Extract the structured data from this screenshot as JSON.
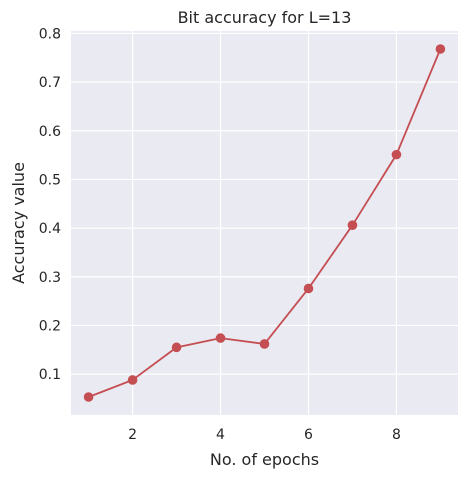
{
  "chart_data": {
    "type": "line",
    "title": "Bit accuracy for L=13",
    "xlabel": "No. of epochs",
    "ylabel": "Accuracy value",
    "x": [
      1,
      2,
      3,
      4,
      5,
      6,
      7,
      8,
      9
    ],
    "series": [
      {
        "values": [
          0.053,
          0.088,
          0.155,
          0.174,
          0.162,
          0.276,
          0.406,
          0.551,
          0.768
        ],
        "color": "#c44e52",
        "marker": "circle"
      }
    ],
    "xlim": [
      0.6,
      9.4
    ],
    "ylim": [
      0.016,
      0.805
    ],
    "xticks": [
      2,
      4,
      6,
      8
    ],
    "yticks": [
      0.1,
      0.2,
      0.3,
      0.4,
      0.5,
      0.6,
      0.7,
      0.8
    ],
    "xtick_labels": [
      "2",
      "4",
      "6",
      "8"
    ],
    "ytick_labels": [
      "0.1",
      "0.2",
      "0.3",
      "0.4",
      "0.5",
      "0.6",
      "0.7",
      "0.8"
    ],
    "grid": true,
    "legend": "none",
    "background_color": "#eaeaf2",
    "grid_color": "#ffffff"
  }
}
